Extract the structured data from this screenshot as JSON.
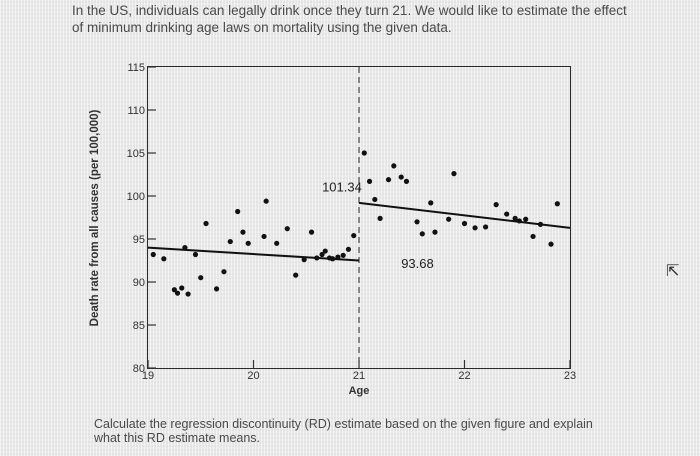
{
  "prompt_text": "In the US, individuals can legally drink once they turn 21. We would like to estimate the effect of minimum drinking age laws on mortality using the given data.",
  "question_text": "Calculate the regression discontinuity (RD) estimate based on the given figure and explain what this RD estimate means.",
  "chart_data": {
    "type": "scatter",
    "xlabel": "Age",
    "ylabel": "Death rate from all causes (per 100,000)",
    "xlim": [
      19,
      23
    ],
    "ylim": [
      80,
      115
    ],
    "xticks": [
      19,
      20,
      21,
      22,
      23
    ],
    "yticks": [
      80,
      85,
      90,
      95,
      100,
      105,
      110,
      115
    ],
    "cutoff": 21,
    "annotations": [
      {
        "text": "101.34",
        "x": 20.65,
        "y": 100.5
      },
      {
        "text": "93.68",
        "x": 21.4,
        "y": 91.6
      }
    ],
    "points": [
      {
        "x": 19.05,
        "y": 93.2
      },
      {
        "x": 19.15,
        "y": 92.7
      },
      {
        "x": 19.25,
        "y": 89.1
      },
      {
        "x": 19.28,
        "y": 88.7
      },
      {
        "x": 19.32,
        "y": 89.3
      },
      {
        "x": 19.35,
        "y": 94.0
      },
      {
        "x": 19.38,
        "y": 88.6
      },
      {
        "x": 19.45,
        "y": 93.2
      },
      {
        "x": 19.5,
        "y": 90.5
      },
      {
        "x": 19.55,
        "y": 96.8
      },
      {
        "x": 19.65,
        "y": 89.2
      },
      {
        "x": 19.72,
        "y": 91.2
      },
      {
        "x": 19.78,
        "y": 94.7
      },
      {
        "x": 19.85,
        "y": 98.2
      },
      {
        "x": 19.9,
        "y": 95.8
      },
      {
        "x": 19.95,
        "y": 94.5
      },
      {
        "x": 20.1,
        "y": 95.3
      },
      {
        "x": 20.12,
        "y": 99.4
      },
      {
        "x": 20.22,
        "y": 94.5
      },
      {
        "x": 20.32,
        "y": 96.2
      },
      {
        "x": 20.4,
        "y": 90.8
      },
      {
        "x": 20.48,
        "y": 92.6
      },
      {
        "x": 20.55,
        "y": 95.8
      },
      {
        "x": 20.6,
        "y": 92.8
      },
      {
        "x": 20.65,
        "y": 93.2
      },
      {
        "x": 20.68,
        "y": 93.6
      },
      {
        "x": 20.72,
        "y": 92.8
      },
      {
        "x": 20.75,
        "y": 92.7
      },
      {
        "x": 20.8,
        "y": 92.9
      },
      {
        "x": 20.85,
        "y": 93.1
      },
      {
        "x": 20.9,
        "y": 93.8
      },
      {
        "x": 20.95,
        "y": 95.4
      },
      {
        "x": 21.05,
        "y": 105.0
      },
      {
        "x": 21.1,
        "y": 101.7
      },
      {
        "x": 21.15,
        "y": 99.6
      },
      {
        "x": 21.2,
        "y": 97.4
      },
      {
        "x": 21.28,
        "y": 101.9
      },
      {
        "x": 21.33,
        "y": 103.5
      },
      {
        "x": 21.4,
        "y": 102.2
      },
      {
        "x": 21.45,
        "y": 101.7
      },
      {
        "x": 21.55,
        "y": 97.0
      },
      {
        "x": 21.6,
        "y": 95.6
      },
      {
        "x": 21.68,
        "y": 99.2
      },
      {
        "x": 21.72,
        "y": 95.8
      },
      {
        "x": 21.85,
        "y": 97.3
      },
      {
        "x": 21.9,
        "y": 102.6
      },
      {
        "x": 22.0,
        "y": 96.8
      },
      {
        "x": 22.1,
        "y": 96.3
      },
      {
        "x": 22.2,
        "y": 96.4
      },
      {
        "x": 22.3,
        "y": 99.0
      },
      {
        "x": 22.4,
        "y": 97.9
      },
      {
        "x": 22.48,
        "y": 97.4
      },
      {
        "x": 22.52,
        "y": 97.1
      },
      {
        "x": 22.58,
        "y": 97.3
      },
      {
        "x": 22.65,
        "y": 95.3
      },
      {
        "x": 22.72,
        "y": 96.7
      },
      {
        "x": 22.82,
        "y": 94.4
      },
      {
        "x": 22.88,
        "y": 99.1
      }
    ],
    "fit_lines": [
      {
        "x": [
          19.0,
          21.0
        ],
        "y": [
          94.0,
          92.5
        ]
      },
      {
        "x": [
          21.0,
          23.0
        ],
        "y": [
          99.2,
          96.3
        ]
      }
    ]
  }
}
